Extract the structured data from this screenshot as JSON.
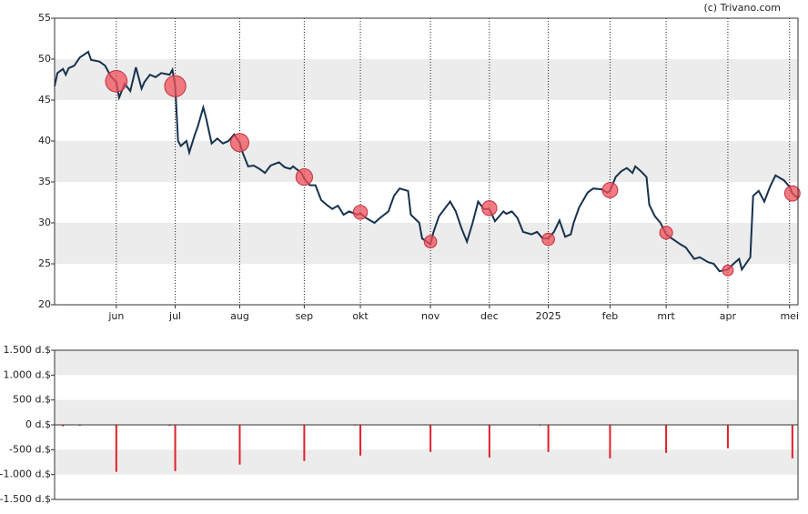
{
  "chart_data": [
    {
      "type": "line",
      "credit": "(c) Trivano.com",
      "color": "#17324f",
      "grid": true,
      "xlim": [
        0,
        265
      ],
      "ylim": [
        20,
        55
      ],
      "yticks": [
        20,
        25,
        30,
        35,
        40,
        45,
        50,
        55
      ],
      "xticks": [
        {
          "value": 22,
          "label": "jun"
        },
        {
          "value": 43,
          "label": "jul"
        },
        {
          "value": 66,
          "label": "aug"
        },
        {
          "value": 89,
          "label": "sep"
        },
        {
          "value": 109,
          "label": "okt"
        },
        {
          "value": 134,
          "label": "nov"
        },
        {
          "value": 155,
          "label": "dec"
        },
        {
          "value": 176,
          "label": "2025"
        },
        {
          "value": 198,
          "label": "feb"
        },
        {
          "value": 218,
          "label": "mrt"
        },
        {
          "value": 240,
          "label": "apr"
        },
        {
          "value": 262,
          "label": "mei"
        }
      ],
      "x": [
        0,
        1,
        3,
        4,
        5,
        7,
        9,
        12,
        13,
        16,
        18,
        20,
        22,
        23,
        25,
        27,
        29,
        31,
        32,
        34,
        36,
        38,
        41,
        42,
        43,
        44,
        45,
        47,
        48,
        50,
        51,
        53,
        54,
        56,
        58,
        60,
        62,
        64,
        66,
        67,
        69,
        71,
        73,
        75,
        77,
        80,
        82,
        84,
        85,
        88,
        89,
        91,
        93,
        95,
        97,
        99,
        101,
        103,
        105,
        108,
        109,
        111,
        114,
        116,
        119,
        121,
        123,
        126,
        127,
        130,
        131,
        134,
        135,
        137,
        139,
        141,
        143,
        145,
        147,
        149,
        151,
        153,
        155,
        157,
        160,
        161,
        163,
        165,
        167,
        170,
        172,
        174,
        176,
        178,
        180,
        182,
        184,
        185,
        187,
        190,
        192,
        195,
        197,
        198,
        200,
        202,
        204,
        206,
        207,
        209,
        211,
        212,
        214,
        216,
        218,
        220,
        223,
        225,
        228,
        230,
        233,
        235,
        237,
        240,
        242,
        244,
        245,
        248,
        249,
        251,
        253,
        255,
        257,
        260,
        262,
        263,
        265
      ],
      "values": [
        46.7,
        48.3,
        48.8,
        48.1,
        48.9,
        49.2,
        50.2,
        50.9,
        49.9,
        49.7,
        49.2,
        47.9,
        47.2,
        45.3,
        47,
        46.1,
        49,
        46.4,
        47.2,
        48.1,
        47.8,
        48.3,
        48.1,
        48.7,
        46.7,
        40,
        39.4,
        40,
        38.6,
        40.8,
        41.7,
        44.1,
        42.8,
        39.7,
        40.3,
        39.7,
        40,
        40.8,
        39.8,
        38.6,
        36.9,
        37,
        36.6,
        36.1,
        37,
        37.4,
        36.8,
        36.6,
        36.9,
        36.1,
        35.4,
        34.6,
        34.6,
        32.8,
        32.2,
        31.7,
        32.1,
        31,
        31.4,
        31,
        31.2,
        30.6,
        30,
        30.6,
        31.4,
        33.3,
        34.2,
        33.9,
        31,
        30,
        28.1,
        27.4,
        28.8,
        30.8,
        31.7,
        32.6,
        31.4,
        29.4,
        27.7,
        30,
        32.6,
        31.7,
        31.7,
        30.2,
        31.4,
        31.1,
        31.4,
        30.6,
        28.9,
        28.6,
        28.9,
        28.1,
        28.1,
        28.9,
        30.3,
        28.3,
        28.6,
        30,
        31.9,
        33.7,
        34.2,
        34.1,
        33.7,
        33.9,
        35.6,
        36.3,
        36.7,
        36.1,
        36.9,
        36.3,
        35.6,
        32.2,
        30.8,
        30,
        28.6,
        28.1,
        27.4,
        27,
        25.6,
        25.8,
        25.2,
        25,
        24.1,
        24.3,
        25,
        25.6,
        24.3,
        25.8,
        33.3,
        33.9,
        32.6,
        34.4,
        35.8,
        35.2,
        34.4,
        33.6,
        33
      ],
      "markers": {
        "color": "#f0505a",
        "x": [
          22,
          43,
          66,
          89,
          109,
          134,
          155,
          176,
          198,
          218,
          240,
          263
        ],
        "values": [
          47.3,
          46.7,
          39.8,
          35.6,
          31.3,
          27.7,
          31.8,
          28,
          34,
          28.8,
          24.2,
          33.6
        ]
      }
    },
    {
      "type": "bar",
      "color": "#e0202a",
      "grid": true,
      "xlim": [
        0,
        265
      ],
      "ylim": [
        -1500,
        1500
      ],
      "yticks": [
        {
          "value": -1500,
          "label": "-1.500 d.$"
        },
        {
          "value": -1000,
          "label": "-1.000 d.$"
        },
        {
          "value": -500,
          "label": "-500 d.$"
        },
        {
          "value": 0,
          "label": "0 d.$"
        },
        {
          "value": 500,
          "label": "500 d.$"
        },
        {
          "value": 1000,
          "label": "1.000 d.$"
        },
        {
          "value": 1500,
          "label": "1.500 d.$"
        }
      ],
      "x": [
        3,
        9,
        22,
        41,
        43,
        66,
        89,
        107,
        109,
        134,
        155,
        173,
        176,
        198,
        218,
        240,
        263
      ],
      "values": [
        -30,
        -20,
        -945,
        -20,
        -930,
        -800,
        -727,
        -15,
        -618,
        -545,
        -655,
        -15,
        -545,
        -673,
        -564,
        -473,
        -673
      ]
    }
  ]
}
